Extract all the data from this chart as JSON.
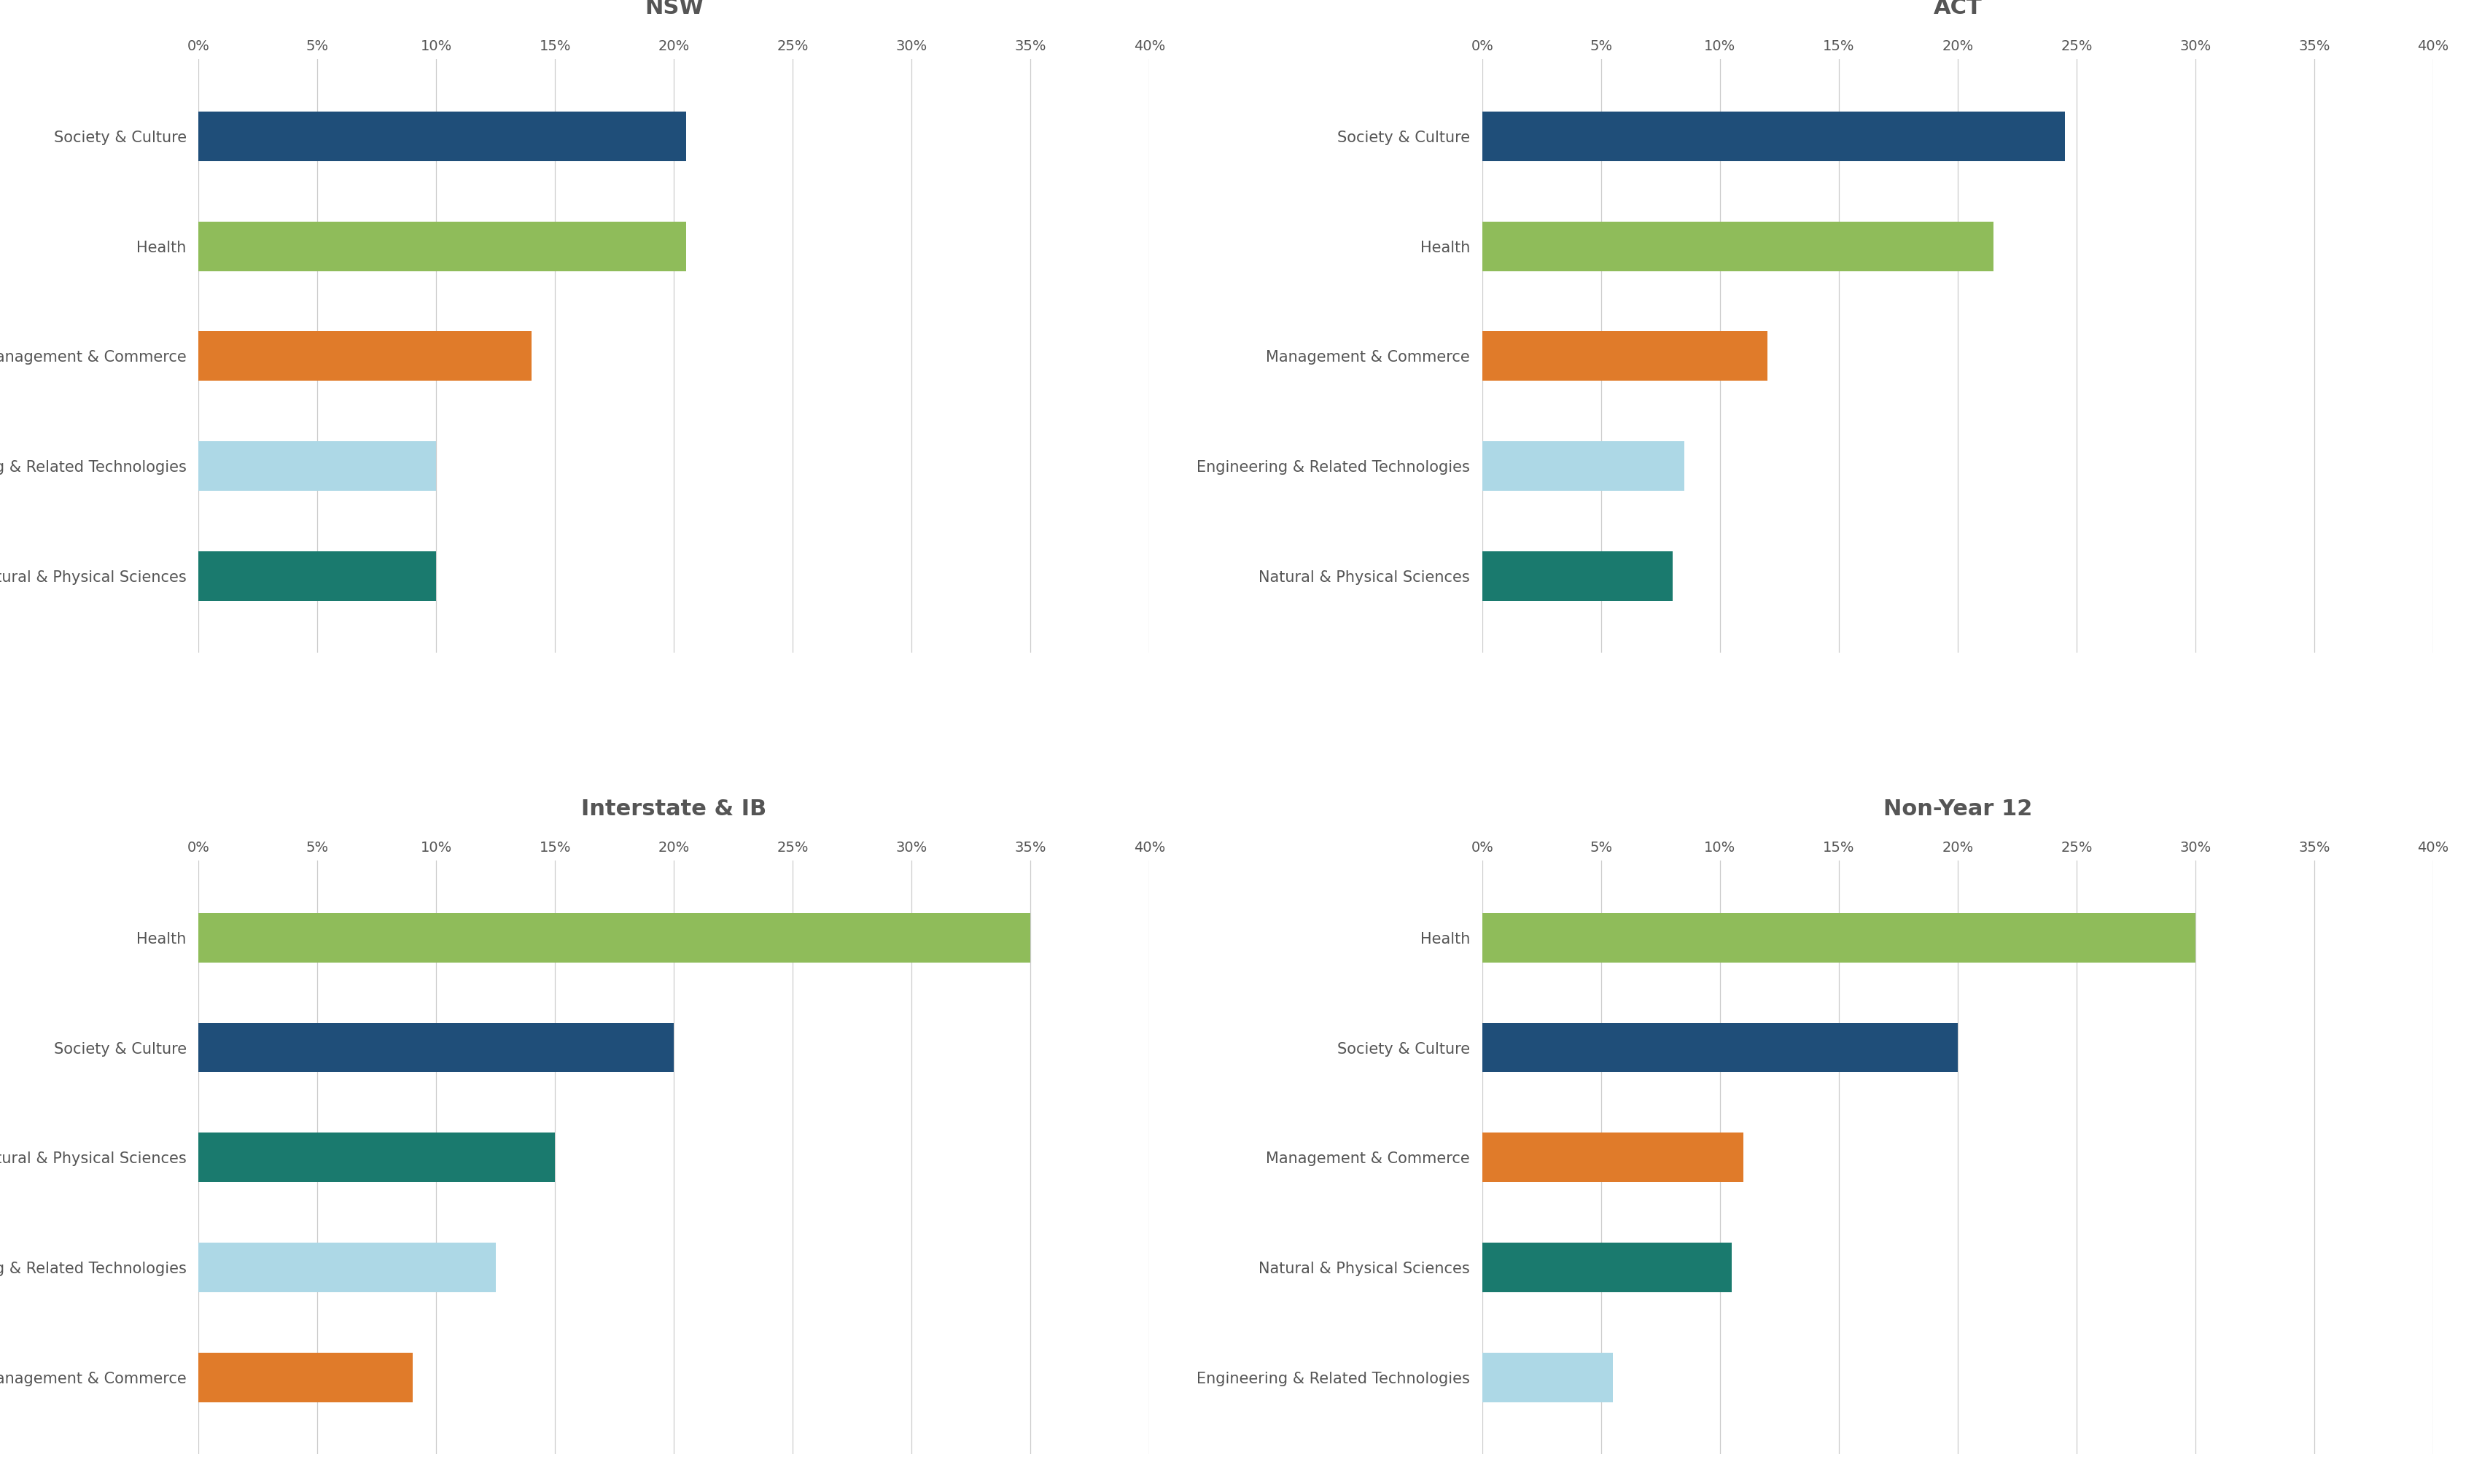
{
  "subplots": [
    {
      "title": "NSW",
      "categories": [
        "Society & Culture",
        "Health",
        "Management & Commerce",
        "Engineering & Related Technologies",
        "Natural & Physical Sciences"
      ],
      "values": [
        20.5,
        20.5,
        14.0,
        10.0,
        10.0
      ],
      "colors": [
        "#1f4e79",
        "#8fbc5a",
        "#e07b2a",
        "#add8e6",
        "#1a7a6e"
      ]
    },
    {
      "title": "ACT",
      "categories": [
        "Society & Culture",
        "Health",
        "Management & Commerce",
        "Engineering & Related Technologies",
        "Natural & Physical Sciences"
      ],
      "values": [
        24.5,
        21.5,
        12.0,
        8.5,
        8.0
      ],
      "colors": [
        "#1f4e79",
        "#8fbc5a",
        "#e07b2a",
        "#add8e6",
        "#1a7a6e"
      ]
    },
    {
      "title": "Interstate & IB",
      "categories": [
        "Health",
        "Society & Culture",
        "Natural & Physical Sciences",
        "Engineering & Related Technologies",
        "Management & Commerce"
      ],
      "values": [
        35.0,
        20.0,
        15.0,
        12.5,
        9.0
      ],
      "colors": [
        "#8fbc5a",
        "#1f4e79",
        "#1a7a6e",
        "#add8e6",
        "#e07b2a"
      ]
    },
    {
      "title": "Non-Year 12",
      "categories": [
        "Health",
        "Society & Culture",
        "Management & Commerce",
        "Natural & Physical Sciences",
        "Engineering & Related Technologies"
      ],
      "values": [
        30.0,
        20.0,
        11.0,
        10.5,
        5.5
      ],
      "colors": [
        "#8fbc5a",
        "#1f4e79",
        "#e07b2a",
        "#1a7a6e",
        "#add8e6"
      ]
    }
  ],
  "xlim": [
    0,
    40
  ],
  "xticks": [
    0,
    5,
    10,
    15,
    20,
    25,
    30,
    35,
    40
  ],
  "xticklabels": [
    "0%",
    "5%",
    "10%",
    "15%",
    "20%",
    "25%",
    "30%",
    "35%",
    "40%"
  ],
  "background_color": "#ffffff",
  "title_fontsize": 22,
  "label_fontsize": 15,
  "tick_fontsize": 14,
  "grid_color": "#cccccc",
  "text_color": "#555555",
  "bar_height": 0.45
}
